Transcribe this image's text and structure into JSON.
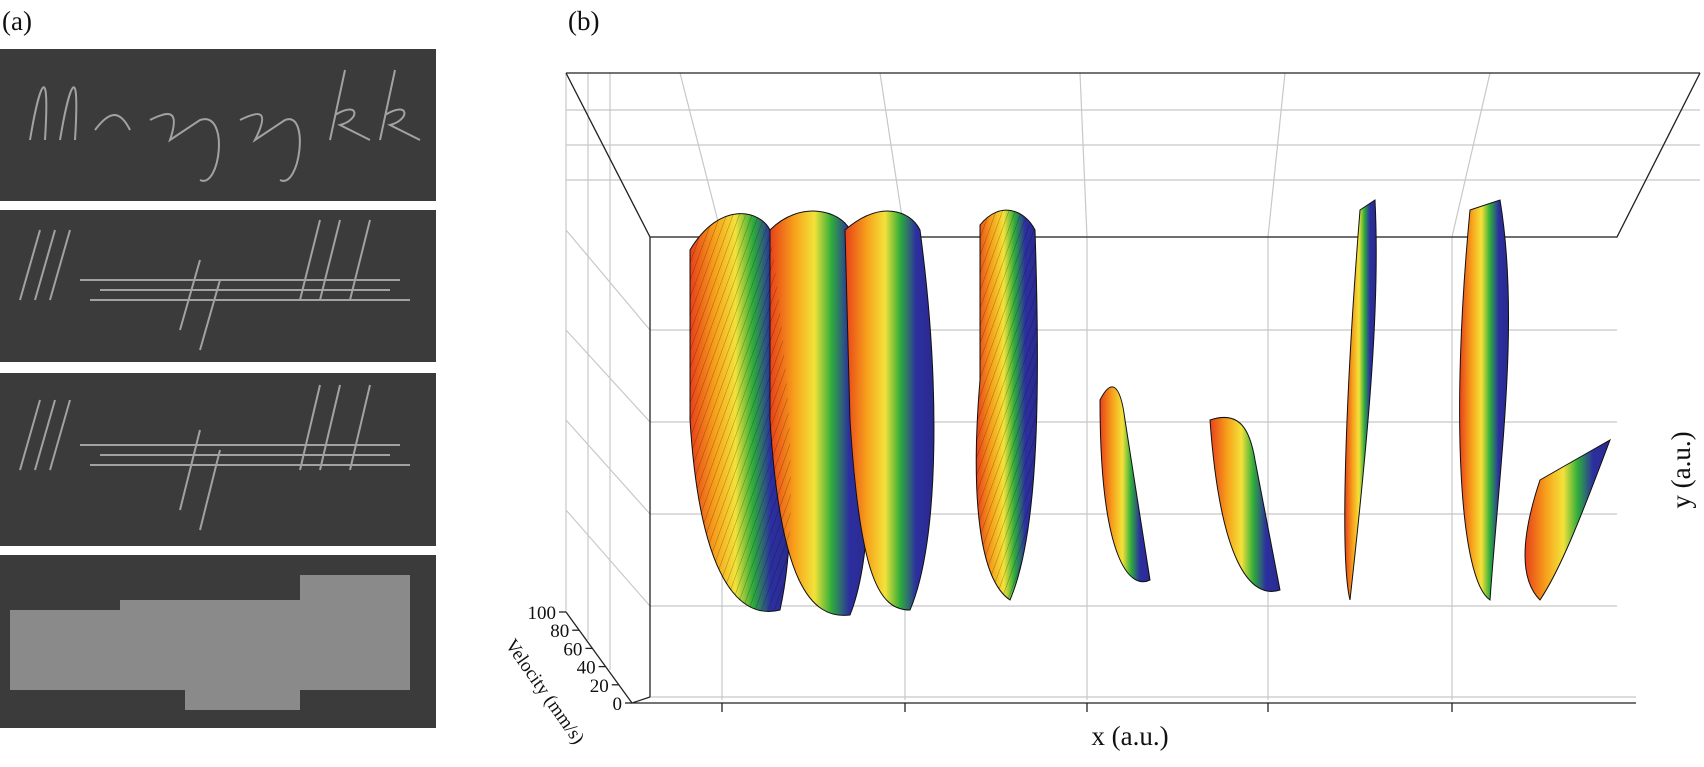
{
  "panel_a": {
    "label": "(a)"
  },
  "panel_b": {
    "label": "(b)",
    "x_label": "x (a.u.)",
    "y_label": "y (a.u.)",
    "z_label": "Velocity (mm/s)",
    "zlim": [
      0,
      100
    ],
    "zticks": [
      0,
      20,
      40,
      60,
      80,
      100
    ]
  }
}
